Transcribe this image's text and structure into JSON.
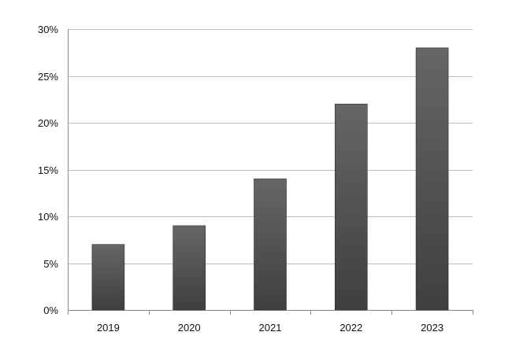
{
  "chart_data": {
    "type": "bar",
    "categories": [
      "2019",
      "2020",
      "2021",
      "2022",
      "2023"
    ],
    "values": [
      7,
      9,
      14,
      22,
      28
    ],
    "ylim": [
      0,
      30
    ],
    "yticks": [
      0,
      5,
      10,
      15,
      20,
      25,
      30
    ],
    "ytick_labels": [
      "0%",
      "5%",
      "10%",
      "15%",
      "20%",
      "25%",
      "30%"
    ],
    "grid": true,
    "legend": "none",
    "colors": {
      "bar_top": "#666666",
      "bar_bottom": "#3f3f3f",
      "bar_edge": "#2e2e2e",
      "grid": "#bdbdbd",
      "axis": "#8a8a8a"
    }
  }
}
